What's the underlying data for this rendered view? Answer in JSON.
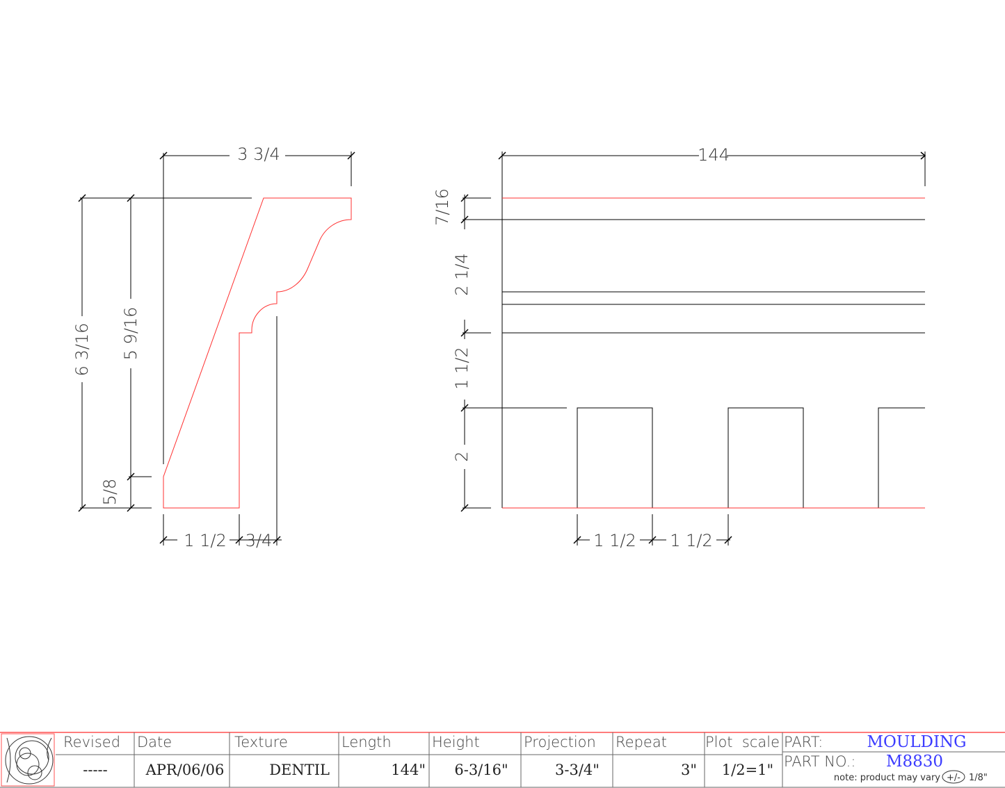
{
  "colors": {
    "profile": "#ff3030",
    "lines": "#000000",
    "part_text": "#3b3bff"
  },
  "profile_view": {
    "dims": {
      "projection": "3 3/4",
      "height_total": "6 3/16",
      "height_face": "5 9/16",
      "base": "5/8",
      "bottom_1": "1 1/2",
      "bottom_2": "3/4"
    }
  },
  "front_view": {
    "dims": {
      "length": "144",
      "top_band": "7/16",
      "mid_band": "2 1/4",
      "lower_band": "1 1/2",
      "dentil_height": "2",
      "dentil_width": "1 1/2",
      "dentil_gap": "1 1/2"
    }
  },
  "title_block": {
    "headers": [
      "Revised",
      "Date",
      "Texture",
      "Length",
      "Height",
      "Projection",
      "Repeat",
      "Plot  scale"
    ],
    "values": [
      "-----",
      "APR/06/06",
      "DENTIL",
      "144\"",
      "6-3/16\"",
      "3-3/4\"",
      "3\"",
      "1/2=1\""
    ],
    "part_label": "PART:",
    "part_value": "MOULDING",
    "part_no_label": "PART NO.:",
    "part_no_value": "M8830",
    "note_prefix": "note: product may vary",
    "note_symbol": "+/-",
    "note_suffix": "1/8\""
  }
}
